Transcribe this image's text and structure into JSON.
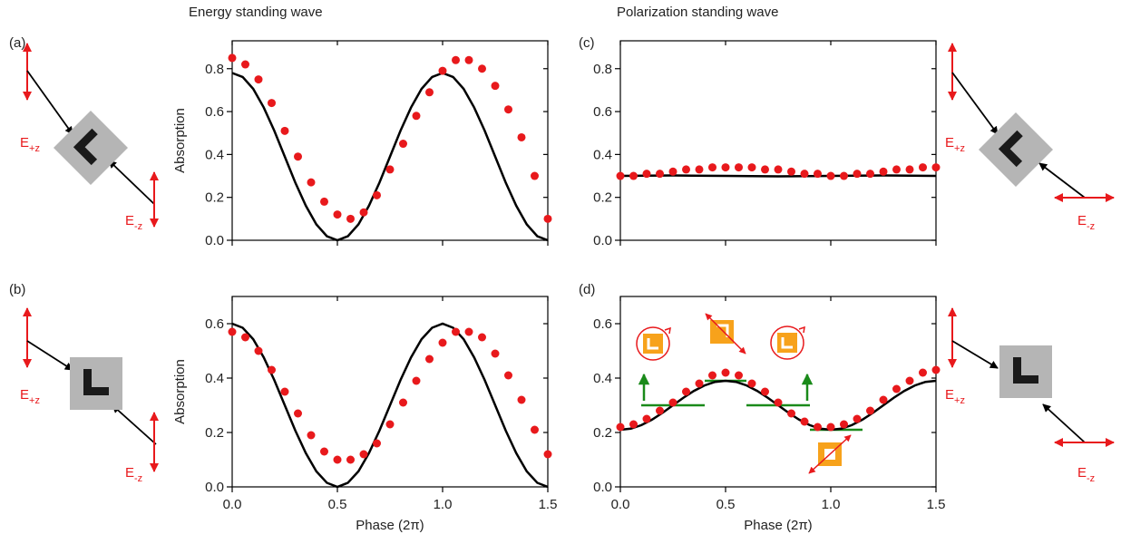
{
  "column_titles": [
    "Energy standing wave",
    "Polarization standing wave"
  ],
  "chart_data": [
    {
      "type": "line",
      "label": "(a)",
      "ylabel": "Absorption",
      "xtick_labels": false,
      "xlim": [
        0,
        1.5
      ],
      "ylim": [
        0,
        0.93
      ],
      "xticks": [
        {
          "value": 0,
          "label": "0.0"
        },
        0.5,
        {
          "value": 1,
          "label": "1.0"
        },
        1.5
      ],
      "yticks": [
        {
          "value": 0,
          "label": "0.0"
        },
        0.2,
        0.4,
        0.6,
        0.8
      ],
      "series": [
        {
          "style": "line",
          "color": "#000000",
          "x": [
            0,
            0.05,
            0.1,
            0.15,
            0.2,
            0.25,
            0.3,
            0.35,
            0.4,
            0.45,
            0.5,
            0.55,
            0.6,
            0.65,
            0.7,
            0.75,
            0.8,
            0.85,
            0.9,
            0.95,
            1,
            1.05,
            1.1,
            1.15,
            1.2,
            1.25,
            1.3,
            1.35,
            1.4,
            1.45,
            1.5
          ],
          "values": [
            0.78,
            0.761,
            0.706,
            0.619,
            0.511,
            0.39,
            0.269,
            0.161,
            0.074,
            0.019,
            0,
            0.019,
            0.074,
            0.161,
            0.269,
            0.39,
            0.511,
            0.619,
            0.706,
            0.761,
            0.78,
            0.761,
            0.706,
            0.619,
            0.511,
            0.39,
            0.269,
            0.161,
            0.074,
            0.019,
            0
          ]
        },
        {
          "style": "markers",
          "color": "#e8191c",
          "x": [
            0,
            0.0625,
            0.125,
            0.1875,
            0.25,
            0.3125,
            0.375,
            0.4375,
            0.5,
            0.5625,
            0.625,
            0.6875,
            0.75,
            0.8125,
            0.875,
            0.9375,
            1,
            1.0625,
            1.125,
            1.1875,
            1.25,
            1.3125,
            1.375,
            1.4375,
            1.5
          ],
          "values": [
            0.85,
            0.82,
            0.75,
            0.64,
            0.51,
            0.39,
            0.27,
            0.18,
            0.12,
            0.1,
            0.13,
            0.21,
            0.33,
            0.45,
            0.58,
            0.69,
            0.79,
            0.84,
            0.84,
            0.8,
            0.72,
            0.61,
            0.48,
            0.3,
            0.1
          ]
        }
      ]
    },
    {
      "type": "line",
      "label": "(b)",
      "ylabel": "Absorption",
      "xlabel": "Phase (2π)",
      "xlim": [
        0,
        1.5
      ],
      "ylim": [
        0,
        0.7
      ],
      "xticks": [
        {
          "value": 0,
          "label": "0.0"
        },
        0.5,
        {
          "value": 1,
          "label": "1.0"
        },
        1.5
      ],
      "yticks": [
        {
          "value": 0,
          "label": "0.0"
        },
        0.2,
        0.4,
        0.6
      ],
      "series": [
        {
          "style": "line",
          "color": "#000000",
          "x": [
            0,
            0.05,
            0.1,
            0.15,
            0.2,
            0.25,
            0.3,
            0.35,
            0.4,
            0.45,
            0.5,
            0.55,
            0.6,
            0.65,
            0.7,
            0.75,
            0.8,
            0.85,
            0.9,
            0.95,
            1,
            1.05,
            1.1,
            1.15,
            1.2,
            1.25,
            1.3,
            1.35,
            1.4,
            1.45,
            1.5
          ],
          "values": [
            0.6,
            0.585,
            0.543,
            0.476,
            0.393,
            0.3,
            0.207,
            0.124,
            0.057,
            0.015,
            0,
            0.015,
            0.057,
            0.124,
            0.207,
            0.3,
            0.393,
            0.476,
            0.543,
            0.585,
            0.6,
            0.585,
            0.543,
            0.476,
            0.393,
            0.3,
            0.207,
            0.124,
            0.057,
            0.015,
            0
          ]
        },
        {
          "style": "markers",
          "color": "#e8191c",
          "x": [
            0,
            0.0625,
            0.125,
            0.1875,
            0.25,
            0.3125,
            0.375,
            0.4375,
            0.5,
            0.5625,
            0.625,
            0.6875,
            0.75,
            0.8125,
            0.875,
            0.9375,
            1,
            1.0625,
            1.125,
            1.1875,
            1.25,
            1.3125,
            1.375,
            1.4375,
            1.5
          ],
          "values": [
            0.57,
            0.55,
            0.5,
            0.43,
            0.35,
            0.27,
            0.19,
            0.13,
            0.1,
            0.1,
            0.12,
            0.16,
            0.23,
            0.31,
            0.39,
            0.47,
            0.53,
            0.57,
            0.57,
            0.55,
            0.49,
            0.41,
            0.32,
            0.21,
            0.12
          ]
        }
      ]
    },
    {
      "type": "line",
      "label": "(c)",
      "xtick_labels": false,
      "xlim": [
        0,
        1.5
      ],
      "ylim": [
        0,
        0.93
      ],
      "xticks": [
        {
          "value": 0,
          "label": "0.0"
        },
        0.5,
        {
          "value": 1,
          "label": "1.0"
        },
        1.5
      ],
      "yticks": [
        {
          "value": 0,
          "label": "0.0"
        },
        0.2,
        0.4,
        0.6,
        0.8
      ],
      "series": [
        {
          "style": "line",
          "color": "#000000",
          "x": [
            0,
            0.25,
            0.5,
            0.75,
            1,
            1.25,
            1.5
          ],
          "values": [
            0.3,
            0.302,
            0.3,
            0.298,
            0.3,
            0.302,
            0.3
          ]
        },
        {
          "style": "markers",
          "color": "#e8191c",
          "x": [
            0,
            0.0625,
            0.125,
            0.1875,
            0.25,
            0.3125,
            0.375,
            0.4375,
            0.5,
            0.5625,
            0.625,
            0.6875,
            0.75,
            0.8125,
            0.875,
            0.9375,
            1,
            1.0625,
            1.125,
            1.1875,
            1.25,
            1.3125,
            1.375,
            1.4375,
            1.5
          ],
          "values": [
            0.3,
            0.3,
            0.31,
            0.31,
            0.32,
            0.33,
            0.33,
            0.34,
            0.34,
            0.34,
            0.34,
            0.33,
            0.33,
            0.32,
            0.31,
            0.31,
            0.3,
            0.3,
            0.31,
            0.31,
            0.32,
            0.33,
            0.33,
            0.34,
            0.34
          ]
        }
      ]
    },
    {
      "type": "line",
      "label": "(d)",
      "xlabel": "Phase (2π)",
      "xlim": [
        0,
        1.5
      ],
      "ylim": [
        0,
        0.7
      ],
      "xticks": [
        {
          "value": 0,
          "label": "0.0"
        },
        0.5,
        {
          "value": 1,
          "label": "1.0"
        },
        1.5
      ],
      "yticks": [
        {
          "value": 0,
          "label": "0.0"
        },
        0.2,
        0.4,
        0.6
      ],
      "series": [
        {
          "style": "line",
          "color": "#000000",
          "x": [
            0,
            0.05,
            0.1,
            0.15,
            0.2,
            0.25,
            0.3,
            0.35,
            0.4,
            0.45,
            0.5,
            0.55,
            0.6,
            0.65,
            0.7,
            0.75,
            0.8,
            0.85,
            0.9,
            0.95,
            1,
            1.05,
            1.1,
            1.15,
            1.2,
            1.25,
            1.3,
            1.35,
            1.4,
            1.45,
            1.5
          ],
          "values": [
            0.21,
            0.214,
            0.227,
            0.247,
            0.272,
            0.3,
            0.328,
            0.353,
            0.373,
            0.386,
            0.39,
            0.386,
            0.373,
            0.353,
            0.328,
            0.3,
            0.272,
            0.247,
            0.227,
            0.214,
            0.21,
            0.214,
            0.227,
            0.247,
            0.272,
            0.3,
            0.328,
            0.353,
            0.373,
            0.386,
            0.39
          ]
        },
        {
          "style": "markers",
          "color": "#e8191c",
          "x": [
            0,
            0.0625,
            0.125,
            0.1875,
            0.25,
            0.3125,
            0.375,
            0.4375,
            0.5,
            0.5625,
            0.625,
            0.6875,
            0.75,
            0.8125,
            0.875,
            0.9375,
            1,
            1.0625,
            1.125,
            1.1875,
            1.25,
            1.3125,
            1.375,
            1.4375,
            1.5
          ],
          "values": [
            0.22,
            0.23,
            0.25,
            0.28,
            0.31,
            0.35,
            0.38,
            0.41,
            0.42,
            0.41,
            0.38,
            0.35,
            0.31,
            0.27,
            0.24,
            0.22,
            0.22,
            0.23,
            0.25,
            0.28,
            0.32,
            0.36,
            0.39,
            0.42,
            0.43
          ]
        }
      ]
    }
  ],
  "diagrams": [
    {
      "top": {
        "main": "E",
        "sub": "+z"
      },
      "bottom": {
        "main": "E",
        "sub": "-z"
      }
    },
    {
      "top": {
        "main": "E",
        "sub": "+z"
      },
      "bottom": {
        "main": "E",
        "sub": "-z"
      }
    },
    {
      "top": {
        "main": "E",
        "sub": "+z"
      },
      "bottom": {
        "main": "E",
        "sub": "-z"
      }
    },
    {
      "top": {
        "main": "E",
        "sub": "+z"
      },
      "bottom": {
        "main": "E",
        "sub": "-z"
      }
    }
  ]
}
